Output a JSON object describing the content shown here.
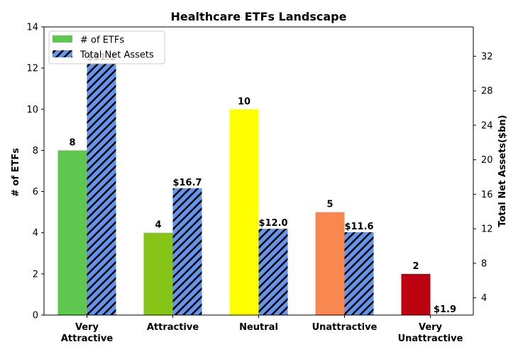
{
  "chart_data": {
    "type": "bar",
    "title": "Healthcare ETFs Landscape",
    "categories": [
      [
        "Very",
        "Attractive"
      ],
      [
        "Attractive"
      ],
      [
        "Neutral"
      ],
      [
        "Unattractive"
      ],
      [
        "Very",
        "Unattractive"
      ]
    ],
    "series": [
      {
        "name": "# of ETFs",
        "axis": "left",
        "values": [
          8,
          4,
          10,
          5,
          2
        ],
        "labels": [
          "8",
          "4",
          "10",
          "5",
          "2"
        ],
        "colors": [
          "#5fc74f",
          "#87c418",
          "#ffff00",
          "#f98750",
          "#bd0010"
        ]
      },
      {
        "name": "Total Net Assets",
        "axis": "right",
        "values": [
          31.2,
          16.7,
          12.0,
          11.6,
          1.9
        ],
        "labels": [
          "$31.2",
          "$16.7",
          "$12.0",
          "$11.6",
          "$1.9"
        ],
        "color": "#6495ed",
        "pattern": "hatch"
      }
    ],
    "ylabel_left": "# of ETFs",
    "ylabel_right": "Total Net Assets($bn)",
    "ylim_left": [
      0,
      14
    ],
    "ylim_right": [
      2,
      35.4
    ],
    "yticks_left": [
      0,
      2,
      4,
      6,
      8,
      10,
      12,
      14
    ],
    "yticks_right": [
      4,
      8,
      12,
      16,
      20,
      24,
      28,
      32
    ],
    "grid": false,
    "legend_position": "top-left"
  }
}
